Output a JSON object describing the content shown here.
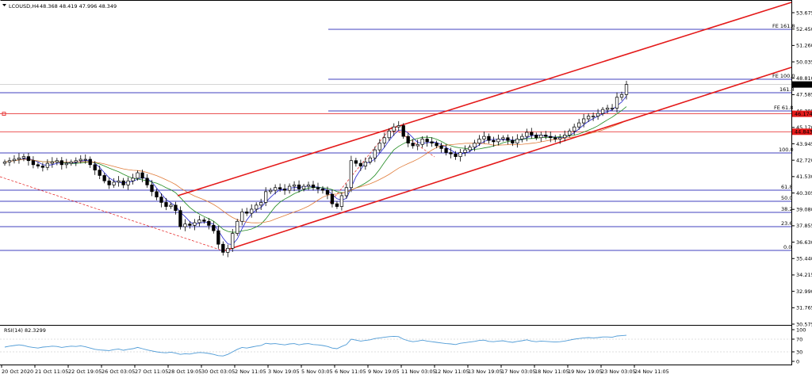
{
  "chart_data": [
    {
      "type": "candlestick",
      "symbol_header": "LCOUSD,H4",
      "ohlc_header": "48.368 48.419 47.996 48.349",
      "x_ticks": [
        "20 Oct 2020",
        "21 Oct 11:05",
        "22 Oct 19:05",
        "26 Oct 03:05",
        "27 Oct 11:05",
        "28 Oct 19:05",
        "30 Oct 03:05",
        "2 Nov 11:05",
        "3 Nov 19:05",
        "5 Nov 03:05",
        "6 Nov 11:05",
        "9 Nov 19:05",
        "11 Nov 03:05",
        "12 Nov 11:05",
        "13 Nov 19:05",
        "17 Nov 03:05",
        "18 Nov 11:05",
        "19 Nov 19:05",
        "23 Nov 03:05",
        "24 Nov 11:05"
      ],
      "y_ticks": [
        "53.675",
        "52.450",
        "51.260",
        "50.035",
        "48.810",
        "47.585",
        "46.395",
        "45.170",
        "43.945",
        "42.720",
        "41.530",
        "40.305",
        "39.080",
        "37.855",
        "36.630",
        "35.440",
        "34.215",
        "32.990",
        "31.765",
        "30.575"
      ],
      "ylim": [
        30.575,
        54.2
      ],
      "current_price": "48.349",
      "highlighted_levels": [
        {
          "label": "46.174",
          "value": 46.174
        },
        {
          "label": "44.843",
          "value": 44.843
        }
      ],
      "closes": [
        42.6,
        42.7,
        42.8,
        42.9,
        43.0,
        42.7,
        42.4,
        42.3,
        42.2,
        42.5,
        42.6,
        42.7,
        42.4,
        42.5,
        42.6,
        42.7,
        42.8,
        42.8,
        42.4,
        42.0,
        41.6,
        41.2,
        40.9,
        41.1,
        41.2,
        40.9,
        41.2,
        41.4,
        41.8,
        41.4,
        40.9,
        40.4,
        40.0,
        39.6,
        39.3,
        39.4,
        39.0,
        37.8,
        38.0,
        37.9,
        38.1,
        38.3,
        38.2,
        37.9,
        37.5,
        36.5,
        35.9,
        36.2,
        37.3,
        38.2,
        38.9,
        38.8,
        39.1,
        39.4,
        39.6,
        40.4,
        40.5,
        40.7,
        40.6,
        40.5,
        40.8,
        40.9,
        40.6,
        40.8,
        40.9,
        40.7,
        40.6,
        40.5,
        40.2,
        39.5,
        39.3,
        40.1,
        40.7,
        42.7,
        42.5,
        42.3,
        42.6,
        42.9,
        43.5,
        44.0,
        44.4,
        44.9,
        45.2,
        45.3,
        44.5,
        44.0,
        43.8,
        43.9,
        44.3,
        44.1,
        44.0,
        43.8,
        43.6,
        43.3,
        43.2,
        43.0,
        43.3,
        43.5,
        43.7,
        44.0,
        44.3,
        44.5,
        44.2,
        44.1,
        44.3,
        44.4,
        44.2,
        44.0,
        44.3,
        44.5,
        44.8,
        44.6,
        44.4,
        44.6,
        44.5,
        44.4,
        44.3,
        44.4,
        44.6,
        44.9,
        45.2,
        45.5,
        45.8,
        46.0,
        46.0,
        46.2,
        46.5,
        46.6,
        46.6,
        47.4,
        47.6,
        48.35
      ],
      "rsi": {
        "label": "RSI(14) 82.3299",
        "levels": [
          "100",
          "70",
          "30",
          "0"
        ],
        "ylim": [
          0,
          100
        ],
        "values": [
          45,
          48,
          50,
          52,
          50,
          46,
          44,
          42,
          45,
          46,
          48,
          47,
          44,
          46,
          48,
          47,
          49,
          46,
          42,
          38,
          36,
          35,
          34,
          37,
          39,
          35,
          38,
          40,
          44,
          40,
          36,
          33,
          30,
          28,
          27,
          29,
          26,
          22,
          24,
          23,
          26,
          28,
          27,
          25,
          22,
          18,
          17,
          22,
          30,
          38,
          44,
          42,
          45,
          48,
          50,
          57,
          55,
          56,
          54,
          52,
          55,
          56,
          52,
          55,
          56,
          53,
          52,
          50,
          47,
          42,
          40,
          47,
          53,
          70,
          67,
          64,
          66,
          68,
          72,
          74,
          76,
          78,
          79,
          78,
          70,
          65,
          62,
          64,
          67,
          64,
          62,
          60,
          58,
          56,
          55,
          53,
          57,
          59,
          61,
          63,
          66,
          67,
          63,
          62,
          64,
          65,
          62,
          60,
          63,
          65,
          68,
          64,
          62,
          64,
          63,
          62,
          61,
          62,
          64,
          67,
          70,
          72,
          74,
          75,
          74,
          75,
          77,
          77,
          76,
          80,
          81,
          82.3
        ]
      },
      "annotation_labels": {
        "fe_161_8": "FE 161.8",
        "fe_100": "FE 100.0",
        "fe_61_8": "FE 61.8",
        "fib_161_8": "161.8",
        "fib_100": "100.0",
        "fib_61_8": "61.8",
        "fib_50": "50.0",
        "fib_38_2": "38.2",
        "fib_23_6": "23.6",
        "fib_0": "0.0"
      }
    }
  ],
  "colors": {
    "candle": "#000000",
    "ma_fast": "#2727d0",
    "ma_mid": "#228b22",
    "ma_slow": "#e07b39",
    "channel": "#e41a1a",
    "fib": "#0000aa",
    "highlight": "#e41a1a",
    "rsi": "#4f9bd6",
    "price_tag": "#000000"
  }
}
